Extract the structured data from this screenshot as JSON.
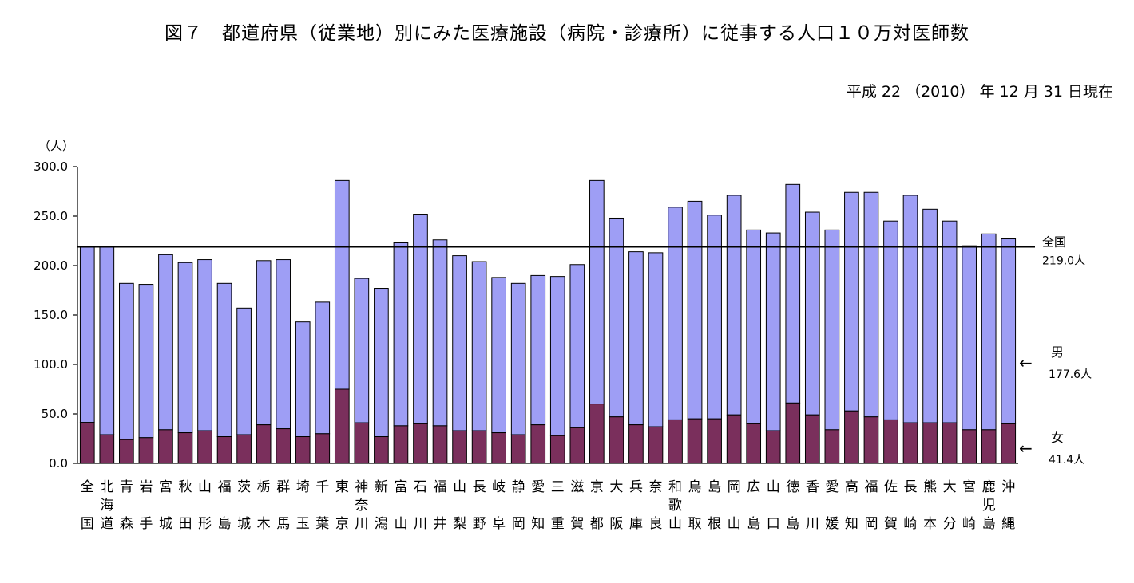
{
  "chart_data": {
    "type": "bar",
    "stacked": true,
    "title": "図７　都道府県（従業地）別にみた医療施設（病院・診療所）に従事する人口１０万対医師数",
    "subtitle": "平成 22 （2010） 年 12 月 31 日現在",
    "ylabel": "（人）",
    "ylim": [
      0,
      300
    ],
    "yticks": [
      "0.0",
      "50.0",
      "100.0",
      "150.0",
      "200.0",
      "250.0",
      "300.0"
    ],
    "grid": false,
    "colors": {
      "男": "#9e9ef5",
      "女": "#7a2f5c",
      "reference_line": "#000000"
    },
    "categories": [
      [
        "全",
        "",
        "国"
      ],
      [
        "北",
        "海",
        "道"
      ],
      [
        "青",
        "",
        "森"
      ],
      [
        "岩",
        "",
        "手"
      ],
      [
        "宮",
        "",
        "城"
      ],
      [
        "秋",
        "",
        "田"
      ],
      [
        "山",
        "",
        "形"
      ],
      [
        "福",
        "",
        "島"
      ],
      [
        "茨",
        "",
        "城"
      ],
      [
        "栃",
        "",
        "木"
      ],
      [
        "群",
        "",
        "馬"
      ],
      [
        "埼",
        "",
        "玉"
      ],
      [
        "千",
        "",
        "葉"
      ],
      [
        "東",
        "",
        "京"
      ],
      [
        "神",
        "奈",
        "川"
      ],
      [
        "新",
        "",
        "潟"
      ],
      [
        "富",
        "",
        "山"
      ],
      [
        "石",
        "",
        "川"
      ],
      [
        "福",
        "",
        "井"
      ],
      [
        "山",
        "",
        "梨"
      ],
      [
        "長",
        "",
        "野"
      ],
      [
        "岐",
        "",
        "阜"
      ],
      [
        "静",
        "",
        "岡"
      ],
      [
        "愛",
        "",
        "知"
      ],
      [
        "三",
        "",
        "重"
      ],
      [
        "滋",
        "",
        "賀"
      ],
      [
        "京",
        "",
        "都"
      ],
      [
        "大",
        "",
        "阪"
      ],
      [
        "兵",
        "",
        "庫"
      ],
      [
        "奈",
        "",
        "良"
      ],
      [
        "和",
        "歌",
        "山"
      ],
      [
        "鳥",
        "",
        "取"
      ],
      [
        "島",
        "",
        "根"
      ],
      [
        "岡",
        "",
        "山"
      ],
      [
        "広",
        "",
        "島"
      ],
      [
        "山",
        "",
        "口"
      ],
      [
        "徳",
        "",
        "島"
      ],
      [
        "香",
        "",
        "川"
      ],
      [
        "愛",
        "",
        "媛"
      ],
      [
        "高",
        "",
        "知"
      ],
      [
        "福",
        "",
        "岡"
      ],
      [
        "佐",
        "",
        "賀"
      ],
      [
        "長",
        "",
        "崎"
      ],
      [
        "熊",
        "",
        "本"
      ],
      [
        "大",
        "",
        "分"
      ],
      [
        "宮",
        "",
        "崎"
      ],
      [
        "鹿",
        "児",
        "島"
      ],
      [
        "沖",
        "",
        "縄"
      ]
    ],
    "series": [
      {
        "name": "女",
        "values": [
          41.4,
          29,
          24,
          26,
          34,
          31,
          33,
          27,
          29,
          39,
          35,
          27,
          30,
          75,
          41,
          27,
          38,
          40,
          38,
          33,
          33,
          31,
          29,
          39,
          28,
          36,
          60,
          47,
          39,
          37,
          44,
          45,
          45,
          49,
          40,
          33,
          61,
          49,
          34,
          53,
          47,
          44,
          41,
          41,
          41,
          34,
          34,
          40
        ]
      },
      {
        "name": "男",
        "values": [
          177.6,
          190,
          158,
          155,
          177,
          172,
          173,
          155,
          128,
          166,
          171,
          116,
          133,
          211,
          146,
          150,
          185,
          212,
          188,
          177,
          171,
          157,
          153,
          151,
          161,
          165,
          226,
          201,
          175,
          176,
          215,
          220,
          206,
          222,
          196,
          200,
          221,
          205,
          202,
          221,
          227,
          201,
          230,
          216,
          204,
          186,
          198,
          187
        ]
      }
    ],
    "reference_line": {
      "value": 219.0,
      "label": "全国",
      "value_label": "219.0人"
    },
    "annotations": [
      {
        "label": "男",
        "value_label": "177.6人",
        "arrow": "←"
      },
      {
        "label": "女",
        "value_label": "41.4人",
        "arrow": "←"
      }
    ]
  }
}
